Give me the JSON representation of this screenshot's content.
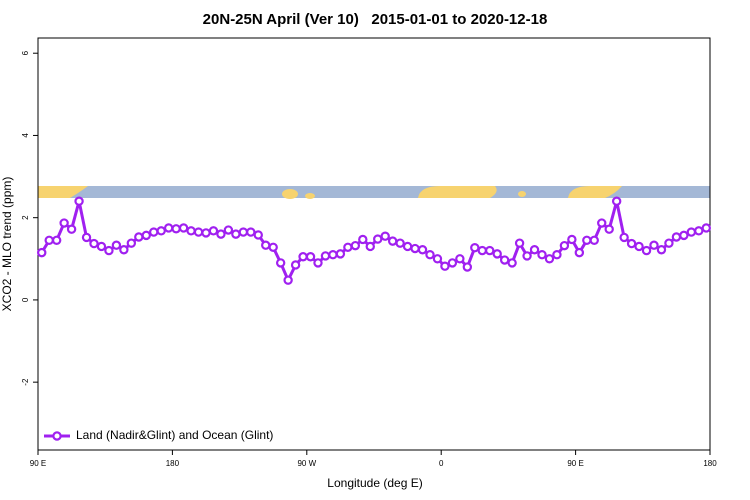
{
  "chart_data": {
    "type": "line",
    "title": "20N-25N April (Ver 10)   2015-01-01 to 2020-12-18",
    "x_label": "Longitude (deg E)",
    "y_label": "XCO2 - MLO trend (ppm)",
    "xlim": [
      90,
      540
    ],
    "ylim": [
      -3.65,
      6.37
    ],
    "xticks": [
      {
        "value": 90,
        "label": "90 E"
      },
      {
        "value": 180,
        "label": "180"
      },
      {
        "value": 270,
        "label": "90 W"
      },
      {
        "value": 360,
        "label": "0"
      },
      {
        "value": 450,
        "label": "90 E"
      },
      {
        "value": 540,
        "label": "180"
      }
    ],
    "yticks": [
      -2,
      0,
      2,
      4,
      6
    ],
    "grid": false,
    "legend_position": "bottom-left",
    "x": [
      92.5,
      97.5,
      102.5,
      107.5,
      112.5,
      117.5,
      122.5,
      127.5,
      132.5,
      137.5,
      142.5,
      147.5,
      152.5,
      157.5,
      162.5,
      167.5,
      172.5,
      177.5,
      182.5,
      187.5,
      192.5,
      197.5,
      202.5,
      207.5,
      212.5,
      217.5,
      222.5,
      227.5,
      232.5,
      237.5,
      242.5,
      247.5,
      252.5,
      257.5,
      262.5,
      267.5,
      272.5,
      277.5,
      282.5,
      287.5,
      292.5,
      297.5,
      302.5,
      307.5,
      312.5,
      317.5,
      322.5,
      327.5,
      332.5,
      337.5,
      342.5,
      347.5,
      352.5,
      357.5,
      362.5,
      367.5,
      372.5,
      377.5,
      382.5,
      387.5,
      392.5,
      397.5,
      402.5,
      407.5,
      412.5,
      417.5,
      422.5,
      427.5,
      432.5,
      437.5,
      442.5,
      447.5,
      452.5,
      457.5,
      462.5,
      467.5,
      472.5,
      477.5,
      482.5,
      487.5,
      492.5,
      497.5,
      502.5,
      507.5,
      512.5,
      517.5,
      522.5,
      527.5,
      532.5,
      537.5
    ],
    "series": [
      {
        "name": "Land (Nadir&Glint) and Ocean (Glint)",
        "color": "#a020f0",
        "values": [
          1.15,
          1.45,
          1.45,
          1.87,
          1.72,
          2.4,
          1.52,
          1.37,
          1.3,
          1.2,
          1.33,
          1.22,
          1.38,
          1.53,
          1.57,
          1.65,
          1.68,
          1.75,
          1.73,
          1.75,
          1.68,
          1.65,
          1.63,
          1.68,
          1.6,
          1.7,
          1.6,
          1.65,
          1.65,
          1.58,
          1.33,
          1.28,
          0.9,
          0.48,
          0.85,
          1.05,
          1.05,
          0.9,
          1.07,
          1.1,
          1.12,
          1.28,
          1.32,
          1.47,
          1.3,
          1.48,
          1.55,
          1.43,
          1.38,
          1.3,
          1.25,
          1.22,
          1.1,
          1.0,
          0.82,
          0.9,
          1.0,
          0.8,
          1.27,
          1.2,
          1.2,
          1.12,
          0.97,
          0.9,
          1.38,
          1.07,
          1.22,
          1.1,
          1.0,
          1.1,
          1.32,
          1.47,
          1.15,
          1.45,
          1.45,
          1.87,
          1.72,
          2.4,
          1.52,
          1.37,
          1.3,
          1.2,
          1.33,
          1.22,
          1.38,
          1.53,
          1.57,
          1.65,
          1.68,
          1.75
        ]
      }
    ]
  }
}
